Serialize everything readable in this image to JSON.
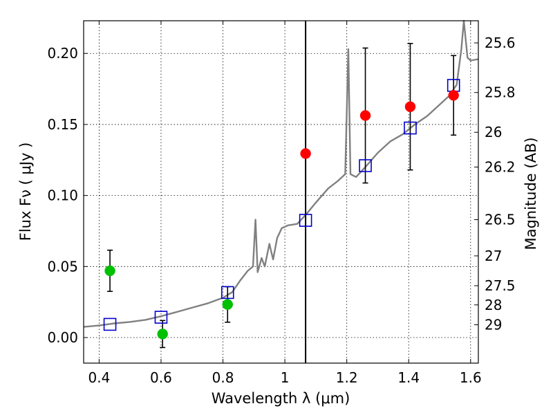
{
  "chart_data": {
    "type": "scatter",
    "title": "",
    "xlabel": "Wavelength  λ (μm)",
    "ylabel": "Flux  Fν  ( μJy )",
    "y2label": "Magnitude (AB)",
    "xlim": [
      0.35,
      1.625
    ],
    "ylim": [
      -0.018,
      0.223
    ],
    "grid": true,
    "x_ticks": [
      {
        "v": 0.4,
        "label": "0.4"
      },
      {
        "v": 0.6,
        "label": "0.6"
      },
      {
        "v": 0.8,
        "label": "0.8"
      },
      {
        "v": 1.0,
        "label": "1"
      },
      {
        "v": 1.2,
        "label": "1.2"
      },
      {
        "v": 1.4,
        "label": "1.4"
      },
      {
        "v": 1.6,
        "label": "1.6"
      }
    ],
    "y_ticks": [
      {
        "v": 0.0,
        "label": "0.00"
      },
      {
        "v": 0.05,
        "label": "0.05"
      },
      {
        "v": 0.1,
        "label": "0.10"
      },
      {
        "v": 0.15,
        "label": "0.15"
      },
      {
        "v": 0.2,
        "label": "0.20"
      }
    ],
    "mag_ticks": [
      {
        "v": 0.2074,
        "label": "25.6"
      },
      {
        "v": 0.1725,
        "label": "25.8"
      },
      {
        "v": 0.1445,
        "label": "26"
      },
      {
        "v": 0.12,
        "label": "26.2"
      },
      {
        "v": 0.083,
        "label": "26.5"
      },
      {
        "v": 0.0575,
        "label": "27"
      },
      {
        "v": 0.0365,
        "label": "27.5"
      },
      {
        "v": 0.023,
        "label": "28"
      },
      {
        "v": 0.009,
        "label": "29"
      }
    ],
    "vertical_line_x": 1.067,
    "series": [
      {
        "marker": "circle",
        "color": "#00c000",
        "points": [
          {
            "x": 0.435,
            "y": 0.047,
            "err": 0.0145
          },
          {
            "x": 0.605,
            "y": 0.0025,
            "err": 0.0095
          },
          {
            "x": 0.815,
            "y": 0.0233,
            "err": 0.0125
          }
        ]
      },
      {
        "marker": "circle",
        "color": "#ff0000",
        "points": [
          {
            "x": 1.067,
            "y": 0.1295
          },
          {
            "x": 1.26,
            "y": 0.1563,
            "err": 0.0475
          },
          {
            "x": 1.405,
            "y": 0.1625,
            "err": 0.0445
          },
          {
            "x": 1.545,
            "y": 0.1705,
            "err": 0.028
          }
        ]
      },
      {
        "marker": "square",
        "color": "#0000cc",
        "points": [
          {
            "x": 0.435,
            "y": 0.0093
          },
          {
            "x": 0.6,
            "y": 0.0143
          },
          {
            "x": 0.815,
            "y": 0.0317
          },
          {
            "x": 1.067,
            "y": 0.0825
          },
          {
            "x": 1.26,
            "y": 0.121
          },
          {
            "x": 1.405,
            "y": 0.1475
          },
          {
            "x": 1.545,
            "y": 0.1775
          }
        ]
      },
      {
        "marker": "line",
        "color": "#808080",
        "points": [
          {
            "x": 0.35,
            "y": 0.0075
          },
          {
            "x": 0.4,
            "y": 0.0085
          },
          {
            "x": 0.45,
            "y": 0.01
          },
          {
            "x": 0.5,
            "y": 0.011
          },
          {
            "x": 0.55,
            "y": 0.0125
          },
          {
            "x": 0.6,
            "y": 0.015
          },
          {
            "x": 0.65,
            "y": 0.018
          },
          {
            "x": 0.7,
            "y": 0.021
          },
          {
            "x": 0.75,
            "y": 0.024
          },
          {
            "x": 0.8,
            "y": 0.028
          },
          {
            "x": 0.83,
            "y": 0.032
          },
          {
            "x": 0.855,
            "y": 0.04
          },
          {
            "x": 0.88,
            "y": 0.047
          },
          {
            "x": 0.897,
            "y": 0.05
          },
          {
            "x": 0.905,
            "y": 0.083
          },
          {
            "x": 0.912,
            "y": 0.046
          },
          {
            "x": 0.925,
            "y": 0.056
          },
          {
            "x": 0.935,
            "y": 0.05
          },
          {
            "x": 0.95,
            "y": 0.066
          },
          {
            "x": 0.962,
            "y": 0.055
          },
          {
            "x": 0.975,
            "y": 0.07
          },
          {
            "x": 0.99,
            "y": 0.077
          },
          {
            "x": 1.01,
            "y": 0.079
          },
          {
            "x": 1.04,
            "y": 0.08
          },
          {
            "x": 1.07,
            "y": 0.087
          },
          {
            "x": 1.1,
            "y": 0.095
          },
          {
            "x": 1.14,
            "y": 0.105
          },
          {
            "x": 1.17,
            "y": 0.11
          },
          {
            "x": 1.195,
            "y": 0.115
          },
          {
            "x": 1.205,
            "y": 0.203
          },
          {
            "x": 1.212,
            "y": 0.115
          },
          {
            "x": 1.23,
            "y": 0.113
          },
          {
            "x": 1.26,
            "y": 0.12
          },
          {
            "x": 1.3,
            "y": 0.13
          },
          {
            "x": 1.34,
            "y": 0.138
          },
          {
            "x": 1.38,
            "y": 0.143
          },
          {
            "x": 1.42,
            "y": 0.15
          },
          {
            "x": 1.46,
            "y": 0.156
          },
          {
            "x": 1.5,
            "y": 0.164
          },
          {
            "x": 1.53,
            "y": 0.17
          },
          {
            "x": 1.555,
            "y": 0.178
          },
          {
            "x": 1.57,
            "y": 0.203
          },
          {
            "x": 1.578,
            "y": 0.223
          },
          {
            "x": 1.59,
            "y": 0.197
          },
          {
            "x": 1.6,
            "y": 0.195
          },
          {
            "x": 1.625,
            "y": 0.196
          }
        ]
      }
    ]
  }
}
